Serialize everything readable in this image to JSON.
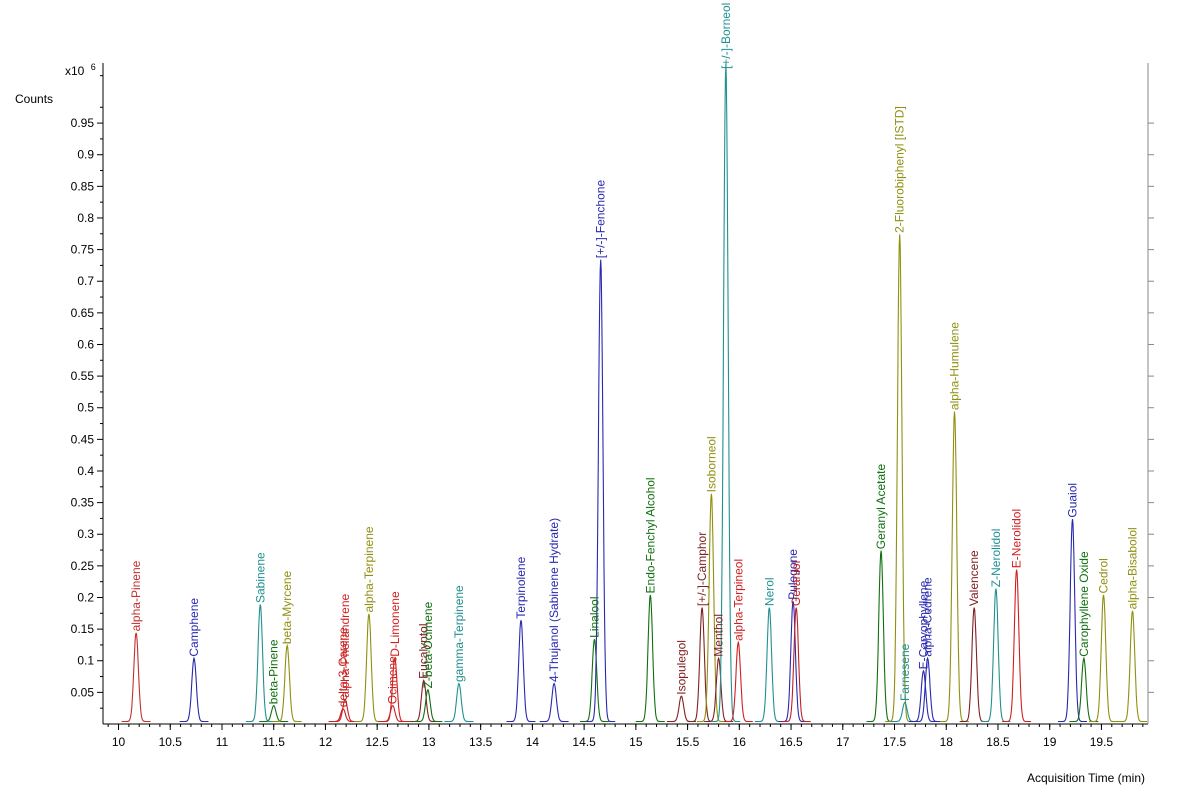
{
  "chart_data": {
    "type": "line",
    "ylabel": "Counts",
    "y_multiplier": "x10",
    "y_multiplier_exponent": "6",
    "xlabel": "Acquisition Time (min)",
    "xlim": [
      9.85,
      19.95
    ],
    "ylim": [
      0,
      1.045
    ],
    "x_ticks": [
      10,
      10.5,
      11,
      11.5,
      12,
      12.5,
      13,
      13.5,
      14,
      14.5,
      15,
      15.5,
      16,
      16.5,
      17,
      17.5,
      18,
      18.5,
      19,
      19.5
    ],
    "x_tick_labels": [
      "10",
      "10.5",
      "11",
      "11.5",
      "12",
      "12.5",
      "13",
      "13.5",
      "14",
      "14.5",
      "15",
      "15.5",
      "16",
      "16.5",
      "17",
      "17.5",
      "18",
      "18.5",
      "19",
      "19.5"
    ],
    "y_ticks": [
      0.05,
      0.1,
      0.15,
      0.2,
      0.25,
      0.3,
      0.35,
      0.4,
      0.45,
      0.5,
      0.55,
      0.6,
      0.65,
      0.7,
      0.75,
      0.8,
      0.85,
      0.9,
      0.95
    ],
    "y_tick_labels": [
      "0.05",
      "0.1",
      "0.15",
      "0.2",
      "0.25",
      "0.3",
      "0.35",
      "0.4",
      "0.45",
      "0.5",
      "0.55",
      "0.6",
      "0.65",
      "0.7",
      "0.75",
      "0.8",
      "0.85",
      "0.9",
      "0.95"
    ],
    "grid": false,
    "peaks": [
      {
        "name": "alpha-Pinene",
        "x": 10.17,
        "y": 0.14,
        "color": "#c03030"
      },
      {
        "name": "Camphene",
        "x": 10.73,
        "y": 0.1,
        "color": "#2828b0"
      },
      {
        "name": "Sabinene",
        "x": 11.37,
        "y": 0.185,
        "color": "#209090"
      },
      {
        "name": "beta-Pinene",
        "x": 11.5,
        "y": 0.025,
        "color": "#107010"
      },
      {
        "name": "beta-Myrcene",
        "x": 11.63,
        "y": 0.12,
        "color": "#909010"
      },
      {
        "name": "delta-3-Carene",
        "x": 12.17,
        "y": 0.02,
        "color": "#c02020"
      },
      {
        "name": "alpha-Phellandrene",
        "x": 12.19,
        "y": 0.035,
        "color": "#d02020"
      },
      {
        "name": "alpha-Terpinene",
        "x": 12.42,
        "y": 0.17,
        "color": "#909010"
      },
      {
        "name": "Ocimene",
        "x": 12.65,
        "y": 0.025,
        "color": "#d02020"
      },
      {
        "name": "D-Limonene",
        "x": 12.67,
        "y": 0.1,
        "color": "#d02020"
      },
      {
        "name": "Eucalyptol",
        "x": 12.95,
        "y": 0.065,
        "color": "#802020"
      },
      {
        "name": "Z-beta-Ocimene",
        "x": 12.99,
        "y": 0.05,
        "color": "#107010"
      },
      {
        "name": "gamma-Terpinene",
        "x": 13.29,
        "y": 0.06,
        "color": "#209090"
      },
      {
        "name": "Terpinolene",
        "x": 13.89,
        "y": 0.16,
        "color": "#2828b0"
      },
      {
        "name": "4-Thujanol (Sabinene Hydrate)",
        "x": 14.21,
        "y": 0.06,
        "color": "#2828b0"
      },
      {
        "name": "Linalool",
        "x": 14.6,
        "y": 0.13,
        "color": "#107010"
      },
      {
        "name": "[+/-]-Fenchone",
        "x": 14.66,
        "y": 0.73,
        "color": "#2828b0"
      },
      {
        "name": "Endo-Fenchyl Alcohol",
        "x": 15.14,
        "y": 0.2,
        "color": "#107010"
      },
      {
        "name": "Isopulegol",
        "x": 15.44,
        "y": 0.04,
        "color": "#802020"
      },
      {
        "name": "[+/-]-Camphor",
        "x": 15.64,
        "y": 0.18,
        "color": "#802020"
      },
      {
        "name": "Isoborneol",
        "x": 15.73,
        "y": 0.36,
        "color": "#909010"
      },
      {
        "name": "Menthol",
        "x": 15.8,
        "y": 0.1,
        "color": "#802020"
      },
      {
        "name": "[+/-]-Borneol",
        "x": 15.87,
        "y": 1.04,
        "color": "#209090"
      },
      {
        "name": "alpha-Terpineol",
        "x": 15.99,
        "y": 0.125,
        "color": "#d02020"
      },
      {
        "name": "Nerol",
        "x": 16.29,
        "y": 0.18,
        "color": "#209090"
      },
      {
        "name": "Pulegone",
        "x": 16.52,
        "y": 0.19,
        "color": "#2828b0"
      },
      {
        "name": "Geraniol",
        "x": 16.55,
        "y": 0.18,
        "color": "#c02020"
      },
      {
        "name": "Geranyl Acetate",
        "x": 17.37,
        "y": 0.27,
        "color": "#107010"
      },
      {
        "name": "2-Fluorobiphenyl [ISTD]",
        "x": 17.55,
        "y": 0.77,
        "color": "#909010"
      },
      {
        "name": "Farnesene",
        "x": 17.6,
        "y": 0.03,
        "color": "#209090"
      },
      {
        "name": "E-Caryophyllene",
        "x": 17.78,
        "y": 0.08,
        "color": "#2828b0"
      },
      {
        "name": "alpha-Cedrene",
        "x": 17.82,
        "y": 0.1,
        "color": "#2828b0"
      },
      {
        "name": "alpha-Humulene",
        "x": 18.08,
        "y": 0.49,
        "color": "#909010"
      },
      {
        "name": "Valencene",
        "x": 18.27,
        "y": 0.18,
        "color": "#802020"
      },
      {
        "name": "Z-Nerolidol",
        "x": 18.48,
        "y": 0.21,
        "color": "#209090"
      },
      {
        "name": "E-Nerolidol",
        "x": 18.68,
        "y": 0.24,
        "color": "#d02020"
      },
      {
        "name": "Guaiol",
        "x": 19.22,
        "y": 0.32,
        "color": "#2828b0"
      },
      {
        "name": "Carophyllene Oxide",
        "x": 19.33,
        "y": 0.1,
        "color": "#107010"
      },
      {
        "name": "Cedrol",
        "x": 19.52,
        "y": 0.2,
        "color": "#909010"
      },
      {
        "name": "alpha-Bisabolol",
        "x": 19.8,
        "y": 0.175,
        "color": "#909010"
      }
    ]
  }
}
